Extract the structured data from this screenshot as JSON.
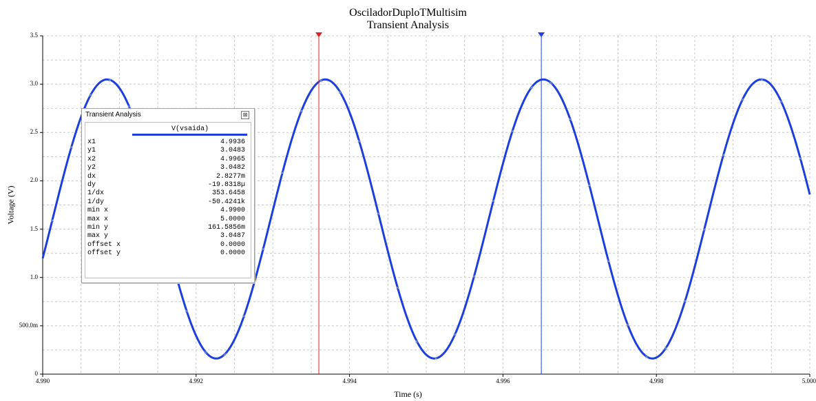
{
  "chart_data": {
    "type": "line",
    "title": "OsciladorDuploTMultisim",
    "subtitle": "Transient Analysis",
    "xlabel": "Time (s)",
    "ylabel": "Voltage (V)",
    "xlim": [
      4.99,
      5.0
    ],
    "ylim": [
      0,
      3.5
    ],
    "x_ticks": [
      "4.990",
      "4.992",
      "4.994",
      "4.996",
      "4.998",
      "5.000"
    ],
    "y_ticks": [
      "0",
      "500.0m",
      "1.0",
      "1.5",
      "2.0",
      "2.5",
      "3.0",
      "3.5"
    ],
    "grid": true,
    "series": [
      {
        "name": "V(vsaida)",
        "color": "#1c3ee0",
        "wave": {
          "min": 0.1619,
          "max": 3.0487,
          "first_peak_x": 4.99084,
          "period": 0.002843
        },
        "x_range": [
          4.99,
          5.0
        ]
      }
    ],
    "cursors": [
      {
        "x": 4.9936,
        "color": "#e02020"
      },
      {
        "x": 4.9965,
        "color": "#2040e0"
      }
    ]
  },
  "cursor_panel": {
    "title": "Transient Analysis",
    "close_glyph": "⊠",
    "series_label": "V(vsaida)",
    "rows": [
      {
        "key": "x1",
        "value": "4.9936"
      },
      {
        "key": "y1",
        "value": "3.0483"
      },
      {
        "key": "x2",
        "value": "4.9965"
      },
      {
        "key": "y2",
        "value": "3.0482"
      },
      {
        "key": "dx",
        "value": "2.8277m"
      },
      {
        "key": "dy",
        "value": "-19.8318µ"
      },
      {
        "key": "1/dx",
        "value": "353.6458"
      },
      {
        "key": "1/dy",
        "value": "-50.4241k"
      },
      {
        "key": "min x",
        "value": "4.9900"
      },
      {
        "key": "max x",
        "value": "5.0000"
      },
      {
        "key": "min y",
        "value": "161.5856m"
      },
      {
        "key": "max y",
        "value": "3.0487"
      },
      {
        "key": "offset x",
        "value": "0.0000"
      },
      {
        "key": "offset y",
        "value": "0.0000"
      }
    ]
  }
}
